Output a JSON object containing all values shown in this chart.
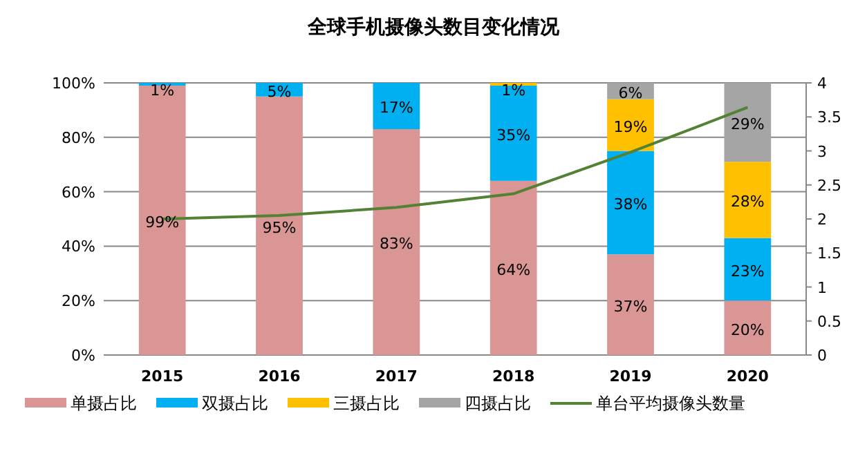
{
  "chart_data": {
    "type": "bar",
    "title": "全球手机摄像头数目变化情况",
    "stacked": true,
    "categories": [
      "2015",
      "2016",
      "2017",
      "2018",
      "2019",
      "2020"
    ],
    "series": [
      {
        "name": "单摄占比",
        "color": "#d99694",
        "values": [
          99,
          95,
          83,
          64,
          37,
          20
        ],
        "value_labels": [
          "99%",
          "95%",
          "83%",
          "64%",
          "37%",
          "20%"
        ]
      },
      {
        "name": "双摄占比",
        "color": "#00b0f0",
        "values": [
          1,
          5,
          17,
          35,
          38,
          23
        ],
        "value_labels": [
          "1%",
          "5%",
          "17%",
          "35%",
          "38%",
          "23%"
        ]
      },
      {
        "name": "三摄占比",
        "color": "#ffc000",
        "values": [
          0,
          0,
          0,
          1,
          19,
          28
        ],
        "value_labels": [
          null,
          null,
          null,
          "1%",
          "19%",
          "28%"
        ]
      },
      {
        "name": "四摄占比",
        "color": "#a5a5a5",
        "values": [
          0,
          0,
          0,
          0,
          6,
          29
        ],
        "value_labels": [
          null,
          null,
          null,
          null,
          "6%",
          "29%"
        ]
      },
      {
        "name": "单台平均摄像头数量",
        "type": "line",
        "axis": "y2",
        "color": "#548235",
        "values": [
          2.0,
          2.05,
          2.17,
          2.37,
          2.98,
          3.64
        ]
      }
    ],
    "ylim": [
      0,
      100
    ],
    "yticks": [
      {
        "value": 0,
        "label": "0%"
      },
      {
        "value": 20,
        "label": "20%"
      },
      {
        "value": 40,
        "label": "40%"
      },
      {
        "value": 60,
        "label": "60%"
      },
      {
        "value": 80,
        "label": "80%"
      },
      {
        "value": 100,
        "label": "100%"
      }
    ],
    "y2lim": [
      0,
      4
    ],
    "y2ticks": [
      0,
      0.5,
      1,
      1.5,
      2,
      2.5,
      3,
      3.5,
      4
    ],
    "grid": "y",
    "legend": "bottom"
  }
}
